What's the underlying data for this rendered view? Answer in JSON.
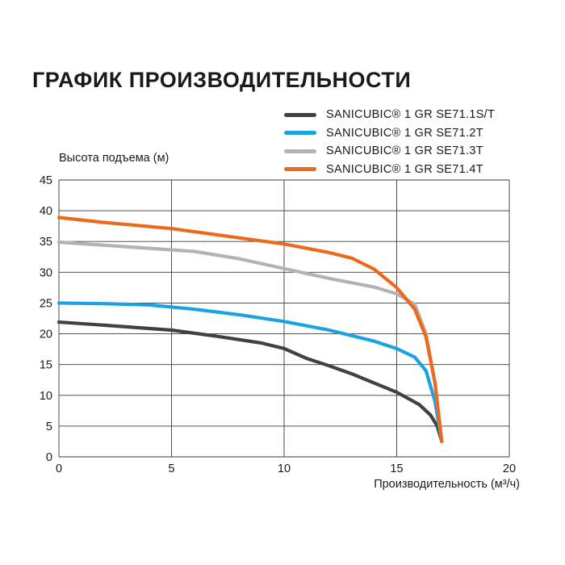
{
  "chart_data": {
    "type": "line",
    "title": "ГРАФИК ПРОИЗВОДИТЕЛЬНОСТИ",
    "xlabel": "Производительность (м³/ч)",
    "ylabel": "Высота подъема (м)",
    "xlim": [
      0,
      20
    ],
    "ylim": [
      0,
      45
    ],
    "x_ticks": [
      "0",
      "5",
      "10",
      "15",
      "20"
    ],
    "y_ticks": [
      "0",
      "5",
      "10",
      "15",
      "20",
      "25",
      "30",
      "35",
      "40",
      "45"
    ],
    "grid": true,
    "legend_position": "top-right",
    "series": [
      {
        "name": "SANICUBIC® 1 GR SE71.1S/T",
        "color": "#414042",
        "points": [
          [
            0,
            21.9
          ],
          [
            2,
            21.4
          ],
          [
            5,
            20.6
          ],
          [
            7,
            19.6
          ],
          [
            9,
            18.5
          ],
          [
            10,
            17.6
          ],
          [
            11,
            16.0
          ],
          [
            12,
            14.8
          ],
          [
            13,
            13.5
          ],
          [
            14,
            12.0
          ],
          [
            15,
            10.5
          ],
          [
            16,
            8.5
          ],
          [
            16.5,
            6.8
          ],
          [
            16.8,
            5.0
          ],
          [
            17,
            2.5
          ]
        ]
      },
      {
        "name": "SANICUBIC® 1 GR SE71.2T",
        "color": "#1aa3e0",
        "points": [
          [
            0,
            25.0
          ],
          [
            2,
            24.9
          ],
          [
            4,
            24.7
          ],
          [
            6,
            24.0
          ],
          [
            8,
            23.1
          ],
          [
            10,
            22.0
          ],
          [
            12,
            20.6
          ],
          [
            14,
            18.8
          ],
          [
            15,
            17.6
          ],
          [
            15.8,
            16.2
          ],
          [
            16.3,
            14.0
          ],
          [
            16.7,
            9.0
          ],
          [
            17,
            2.5
          ]
        ]
      },
      {
        "name": "SANICUBIC® 1 GR SE71.3T",
        "color": "#b3b3b3",
        "points": [
          [
            0,
            34.9
          ],
          [
            2,
            34.4
          ],
          [
            4,
            33.9
          ],
          [
            6,
            33.4
          ],
          [
            8,
            32.2
          ],
          [
            10,
            30.6
          ],
          [
            12,
            29.0
          ],
          [
            14,
            27.6
          ],
          [
            15,
            26.5
          ],
          [
            15.8,
            24.8
          ],
          [
            16.3,
            20.0
          ],
          [
            16.7,
            12.0
          ],
          [
            17,
            2.5
          ]
        ]
      },
      {
        "name": "SANICUBIC® 1 GR SE71.4T",
        "color": "#ec6a1c",
        "points": [
          [
            0,
            38.9
          ],
          [
            2,
            38.1
          ],
          [
            5,
            37.1
          ],
          [
            8,
            35.6
          ],
          [
            10,
            34.6
          ],
          [
            12,
            33.2
          ],
          [
            13,
            32.3
          ],
          [
            14,
            30.5
          ],
          [
            15,
            27.5
          ],
          [
            15.8,
            24.0
          ],
          [
            16.3,
            19.5
          ],
          [
            16.7,
            12.0
          ],
          [
            17,
            2.5
          ]
        ]
      }
    ]
  }
}
